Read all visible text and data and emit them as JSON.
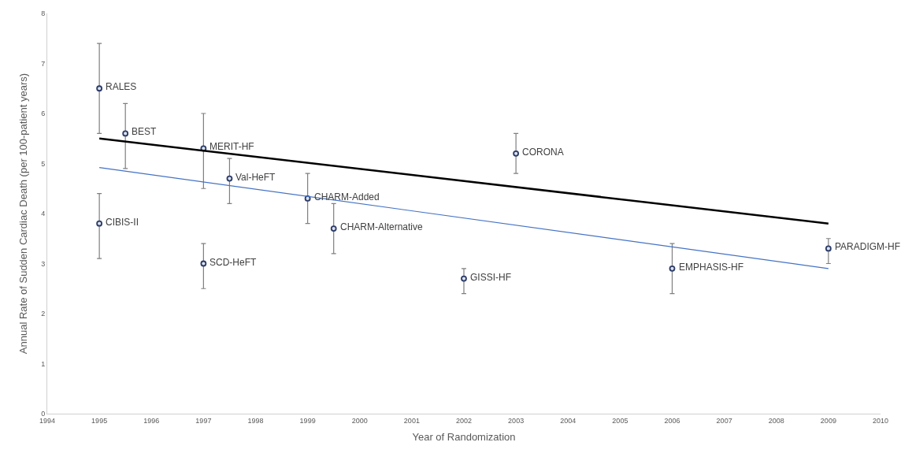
{
  "chart_data": {
    "type": "scatter",
    "xlabel": "Year of Randomization",
    "ylabel": "Annual Rate of Sudden Cardiac Death (per 100-patient years)",
    "xlim": [
      1994,
      2010
    ],
    "xticks": [
      1994,
      1995,
      1996,
      1997,
      1998,
      1999,
      2000,
      2001,
      2002,
      2003,
      2004,
      2005,
      2006,
      2007,
      2008,
      2009,
      2010
    ],
    "ylim": [
      0,
      8
    ],
    "yticks": [
      0,
      1,
      2,
      3,
      4,
      5,
      6,
      7,
      8
    ],
    "marker": "circle",
    "series": [
      {
        "color": "#2b3a67",
        "x": [
          1995,
          1995,
          1995.5,
          1997,
          1997,
          1997.5,
          1999,
          1999.5,
          2002,
          2003,
          2006,
          2009
        ],
        "values": [
          6.5,
          3.8,
          5.6,
          5.3,
          3.0,
          4.7,
          4.3,
          3.7,
          2.7,
          5.2,
          2.9,
          3.3
        ],
        "errors": [
          [
            5.6,
            7.4
          ],
          [
            3.1,
            4.4
          ],
          [
            4.9,
            6.2
          ],
          [
            4.5,
            6.0
          ],
          [
            2.5,
            3.4
          ],
          [
            4.2,
            5.1
          ],
          [
            3.8,
            4.8
          ],
          [
            3.2,
            4.2
          ],
          [
            2.4,
            2.9
          ],
          [
            4.8,
            5.6
          ],
          [
            2.4,
            3.4
          ],
          [
            3.0,
            3.5
          ]
        ]
      },
      {
        "type": "line",
        "marker": "none",
        "color": "#000000",
        "x": [
          1995,
          2009
        ],
        "values": [
          5.5,
          3.8
        ]
      },
      {
        "type": "line",
        "marker": "none",
        "color": "#4472c4",
        "x": [
          1995,
          2009
        ],
        "values": [
          4.92,
          2.9
        ]
      }
    ],
    "annotations": [
      {
        "text": "RALES",
        "x": 1995,
        "y": 6.5
      },
      {
        "text": "CIBIS-II",
        "x": 1995,
        "y": 3.8
      },
      {
        "text": "BEST",
        "x": 1995.5,
        "y": 5.6
      },
      {
        "text": "MERIT-HF",
        "x": 1997,
        "y": 5.3
      },
      {
        "text": "SCD-HeFT",
        "x": 1997,
        "y": 3.0
      },
      {
        "text": "Val-HeFT",
        "x": 1997.5,
        "y": 4.7
      },
      {
        "text": "CHARM-Added",
        "x": 1999,
        "y": 4.3
      },
      {
        "text": "CHARM-Alternative",
        "x": 1999.5,
        "y": 3.7
      },
      {
        "text": "GISSI-HF",
        "x": 2002,
        "y": 2.7
      },
      {
        "text": "CORONA",
        "x": 2003,
        "y": 5.2
      },
      {
        "text": "EMPHASIS-HF",
        "x": 2006,
        "y": 2.9
      },
      {
        "text": "PARADIGM-HF",
        "x": 2009,
        "y": 3.3
      }
    ]
  }
}
